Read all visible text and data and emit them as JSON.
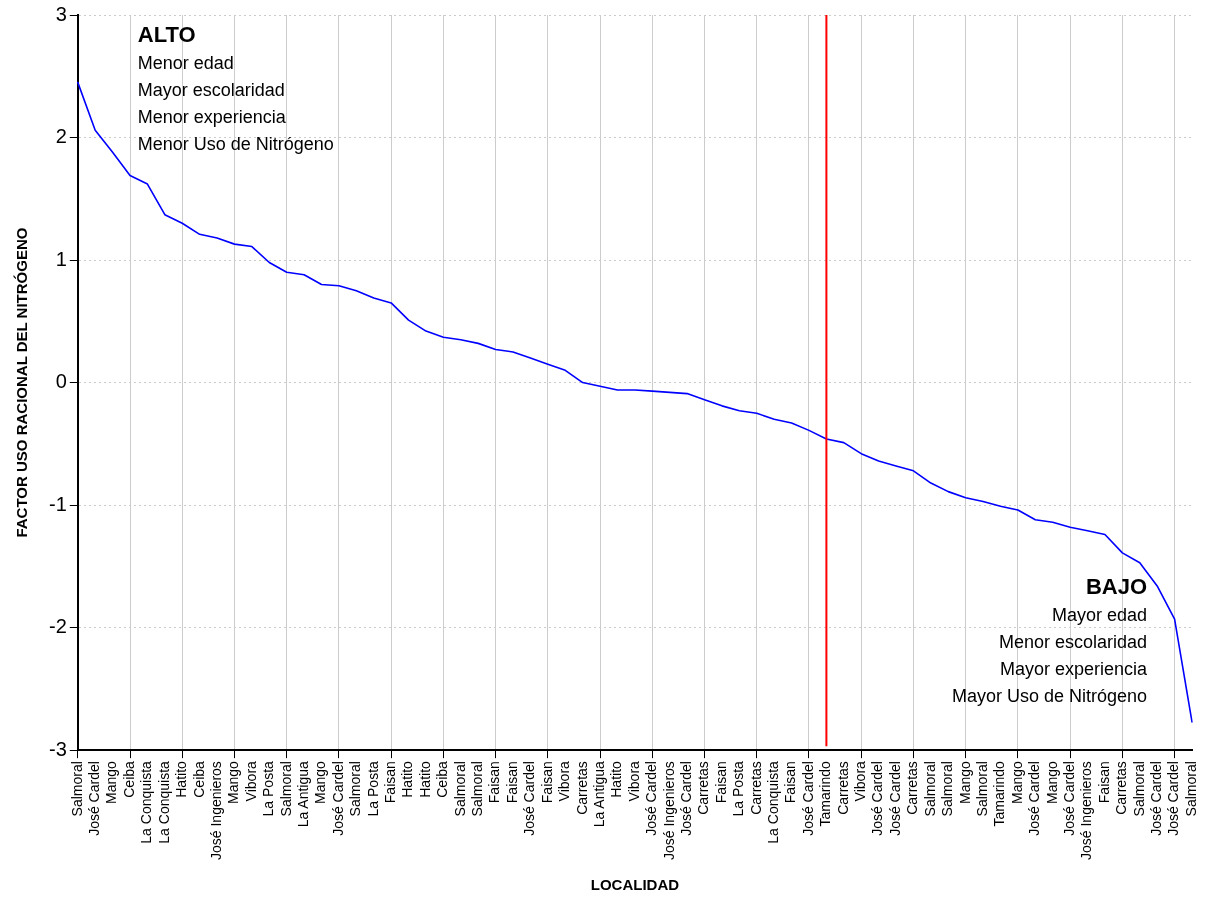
{
  "chart_data": {
    "type": "line",
    "xlabel": "LOCALIDAD",
    "ylabel": "FACTOR USO RACIONAL DEL NITRÓGENO",
    "categories": [
      "Salmoral",
      "José Cardel",
      "Mango",
      "Ceiba",
      "La Conquista",
      "La Conquista",
      "Hatito",
      "Ceiba",
      "José Ingenieros",
      "Mango",
      "Vibora",
      "La Posta",
      "Salmoral",
      "La Antigua",
      "Mango",
      "José Cardel",
      "Salmoral",
      "La Posta",
      "Faisan",
      "Hatito",
      "Hatito",
      "Ceiba",
      "Salmoral",
      "Salmoral",
      "Faisan",
      "Faisan",
      "José Cardel",
      "Faisan",
      "Vibora",
      "Carretas",
      "La Antigua",
      "Hatito",
      "Vibora",
      "José Cardel",
      "José Ingenieros",
      "José Cardel",
      "Carretas",
      "Faisan",
      "La Posta",
      "Carretas",
      "La Conquista",
      "Faisan",
      "José Cardel",
      "Tamarindo",
      "Carretas",
      "Vibora",
      "José Cardel",
      "José Cardel",
      "Carretas",
      "Salmoral",
      "Salmoral",
      "Mango",
      "Salmoral",
      "Tamarindo",
      "Mango",
      "José Cardel",
      "Mango",
      "José Cardel",
      "José Ingenieros",
      "Faisan",
      "Carretas",
      "Salmoral",
      "José Cardel",
      "José Cardel",
      "Salmoral"
    ],
    "series": [
      {
        "color": "#0000ff",
        "values": [
          2.45,
          2.06,
          1.88,
          1.69,
          1.62,
          1.37,
          1.3,
          1.21,
          1.18,
          1.13,
          1.11,
          0.98,
          0.9,
          0.88,
          0.8,
          0.79,
          0.75,
          0.69,
          0.65,
          0.51,
          0.42,
          0.37,
          0.35,
          0.32,
          0.27,
          0.25,
          0.2,
          0.15,
          0.1,
          0.0,
          -0.03,
          -0.06,
          -0.06,
          -0.07,
          -0.08,
          -0.09,
          -0.14,
          -0.19,
          -0.23,
          -0.25,
          -0.3,
          -0.33,
          -0.39,
          -0.46,
          -0.49,
          -0.58,
          -0.64,
          -0.68,
          -0.72,
          -0.82,
          -0.89,
          -0.94,
          -0.97,
          -1.01,
          -1.04,
          -1.12,
          -1.14,
          -1.18,
          -1.21,
          -1.24,
          -1.39,
          -1.47,
          -1.66,
          -1.93,
          -2.77
        ]
      }
    ],
    "ylim": [
      -3,
      3
    ],
    "yticks": [
      -3,
      -2,
      -1,
      0,
      1,
      2,
      3
    ],
    "grid": true,
    "legend": false,
    "marker": "none",
    "line_style": "solid",
    "ref_lines": [
      {
        "axis": "x",
        "value": "Tamarindo",
        "color": "#ff0000"
      }
    ],
    "annotations": [
      "ALTO\nMenor edad\nMayor escolaridad\nMenor experiencia\nMenor Uso de Nitrógeno",
      "BAJO\nMayor edad\nMenor escolaridad\nMayor experiencia\nMayor Uso de Nitrógeno"
    ]
  }
}
